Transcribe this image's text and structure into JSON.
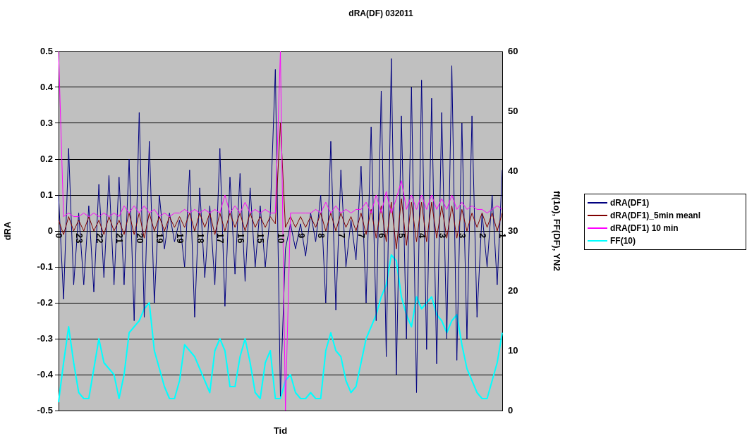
{
  "chart_data": {
    "type": "line",
    "title": "dRA(DF) 032011",
    "xlabel": "Tid",
    "ylabel": "dRA",
    "y2label": "ff(1o), FF(DF), YN2",
    "categories": [
      "0",
      null,
      null,
      null,
      "23",
      null,
      null,
      null,
      "22",
      null,
      null,
      null,
      "21",
      null,
      null,
      null,
      "20",
      null,
      null,
      null,
      "19",
      null,
      null,
      null,
      "19",
      null,
      null,
      null,
      "18",
      null,
      null,
      null,
      "17",
      null,
      null,
      null,
      "16",
      null,
      null,
      null,
      "15",
      null,
      null,
      null,
      "10",
      null,
      null,
      null,
      "9",
      null,
      null,
      null,
      "8",
      null,
      null,
      null,
      "7",
      null,
      null,
      null,
      "7",
      null,
      null,
      null,
      "6",
      null,
      null,
      null,
      "5",
      null,
      null,
      null,
      "4",
      null,
      null,
      null,
      "3",
      null,
      null,
      null,
      "3",
      null,
      null,
      null,
      "2",
      null,
      null,
      null,
      "1"
    ],
    "ylim": [
      -0.5,
      0.5
    ],
    "yticks": [
      -0.5,
      -0.4,
      -0.3,
      -0.2,
      -0.1,
      0,
      0.1,
      0.2,
      0.3,
      0.4,
      0.5
    ],
    "y2lim": [
      0,
      60
    ],
    "y2ticks": [
      0,
      10,
      20,
      30,
      40,
      50,
      60
    ],
    "grid": "y",
    "legend": "right",
    "marker": "none",
    "line_style": "solid",
    "series": [
      {
        "name": "dRA(DF1)",
        "color": "#000080",
        "values": [
          0.1,
          -0.19,
          0.23,
          -0.15,
          0.05,
          -0.15,
          0.07,
          -0.17,
          0.13,
          -0.13,
          0.155,
          -0.15,
          0.15,
          -0.15,
          0.2,
          -0.25,
          0.33,
          -0.24,
          0.25,
          -0.2,
          0.1,
          -0.05,
          0.05,
          -0.03,
          0.03,
          -0.1,
          0.17,
          -0.24,
          0.12,
          -0.13,
          0.07,
          -0.15,
          0.23,
          -0.21,
          0.15,
          -0.12,
          0.16,
          -0.14,
          0.12,
          -0.1,
          0.07,
          -0.1,
          0.05,
          0.45,
          -0.46,
          -0.05,
          0.02,
          -0.05,
          0.02,
          -0.07,
          0.05,
          -0.03,
          0.1,
          -0.2,
          0.25,
          -0.22,
          0.17,
          -0.1,
          0.03,
          -0.08,
          0.18,
          -0.2,
          0.29,
          -0.25,
          0.39,
          -0.35,
          0.48,
          -0.4,
          0.32,
          -0.3,
          0.4,
          -0.45,
          0.42,
          -0.33,
          0.37,
          -0.37,
          0.33,
          -0.3,
          0.46,
          -0.36,
          0.3,
          -0.3,
          0.32,
          -0.24,
          0.05,
          -0.1,
          0.1,
          -0.15,
          0.17
        ]
      },
      {
        "name": "dRA(DF1)_5min meanl",
        "color": "#800000",
        "values": [
          0.03,
          -0.01,
          0.04,
          0,
          0.03,
          0,
          0.04,
          0,
          0.03,
          -0.01,
          0.04,
          0,
          0.03,
          -0.01,
          0.05,
          -0.01,
          0.05,
          -0.02,
          0.05,
          0,
          0.04,
          0,
          0.04,
          0.01,
          0.04,
          0.01,
          0.05,
          0,
          0.05,
          0.01,
          0.05,
          -0.01,
          0.05,
          0,
          0.05,
          0.01,
          0.05,
          0,
          0.05,
          0.01,
          0.04,
          0.01,
          0.04,
          0.02,
          0.3,
          0.01,
          0.04,
          0.01,
          0.04,
          0.01,
          0.04,
          0.01,
          0.05,
          0,
          0.05,
          0,
          0.05,
          0.01,
          0.04,
          0,
          0.05,
          -0.01,
          0.06,
          -0.02,
          0.07,
          -0.03,
          0.08,
          -0.05,
          0.09,
          -0.04,
          0.08,
          -0.03,
          0.08,
          -0.03,
          0.08,
          -0.02,
          0.07,
          -0.02,
          0.07,
          -0.02,
          0.06,
          0,
          0.05,
          0.01,
          0.05,
          0.01,
          0.05,
          0,
          0.05
        ]
      },
      {
        "name": "dRA(DF1) 10 min",
        "color": "#ff00ff",
        "values": [
          0.5,
          0.04,
          0.05,
          0.04,
          0.04,
          0.05,
          0.04,
          0.05,
          0.04,
          0.05,
          0.04,
          0.05,
          0.04,
          0.07,
          0.05,
          0.07,
          0.05,
          0.07,
          0.05,
          0.06,
          0.04,
          0.05,
          0.04,
          0.05,
          0.05,
          0.06,
          0.05,
          0.06,
          0.05,
          0.06,
          0.05,
          0.06,
          0.05,
          0.1,
          0.05,
          0.07,
          0.05,
          0.08,
          0.05,
          0.06,
          0.05,
          0.06,
          0.05,
          0.05,
          0.5,
          -0.5,
          0.05,
          0.05,
          0.05,
          0.05,
          0.05,
          0.06,
          0.05,
          0.08,
          0.05,
          0.07,
          0.05,
          0.06,
          0.05,
          0.06,
          0.06,
          0.08,
          0.05,
          0.1,
          0.05,
          0.11,
          0.05,
          0.09,
          0.14,
          0.06,
          0.1,
          0.06,
          0.1,
          0.06,
          0.1,
          0.06,
          0.09,
          0.06,
          0.1,
          0.06,
          0.08,
          0.06,
          0.07,
          0.06,
          0.06,
          0.05,
          0.06,
          0.07,
          0.06
        ]
      },
      {
        "name": "FF(10)",
        "color": "#00ffff",
        "axis": "y2",
        "values": [
          1.4,
          8,
          14,
          8,
          3,
          2,
          2,
          7,
          12,
          8,
          7,
          6,
          2,
          6,
          13,
          14,
          15,
          17,
          18,
          10,
          7,
          4,
          2,
          2,
          5,
          11,
          10,
          9,
          7,
          5,
          3,
          10,
          12,
          10,
          4,
          4,
          9,
          12,
          8,
          3,
          2,
          8,
          10,
          2,
          2,
          5,
          6,
          3,
          2,
          2,
          3,
          2,
          2,
          10,
          13,
          10,
          9,
          5,
          3,
          4,
          8,
          12,
          14,
          16,
          19,
          21,
          26,
          25,
          19,
          16,
          14,
          19,
          17,
          18,
          19,
          16,
          15,
          13,
          15,
          16,
          11,
          7,
          5,
          3,
          2,
          2,
          5,
          8,
          13
        ]
      }
    ]
  }
}
